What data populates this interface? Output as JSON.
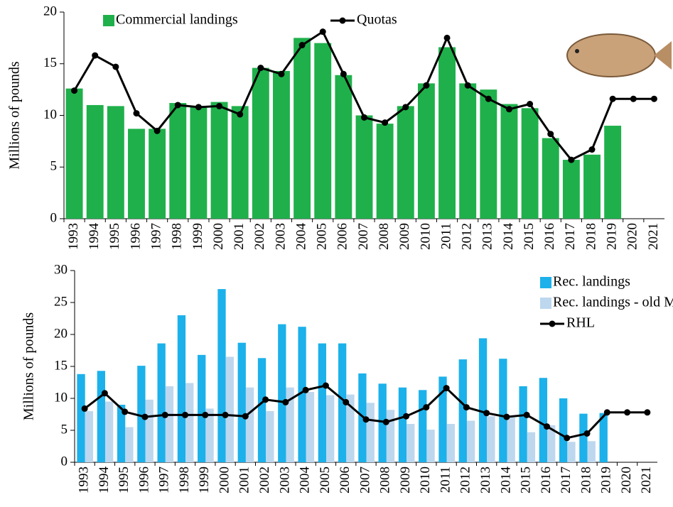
{
  "chart_data": [
    {
      "type": "bar",
      "ylabel": "Millions of pounds",
      "ylim": [
        0,
        20
      ],
      "yticks": [
        0,
        5,
        10,
        15,
        20
      ],
      "legend": "top",
      "categories": [
        "1993",
        "1994",
        "1995",
        "1996",
        "1997",
        "1998",
        "1999",
        "2000",
        "2001",
        "2002",
        "2003",
        "2004",
        "2005",
        "2006",
        "2007",
        "2008",
        "2009",
        "2010",
        "2011",
        "2012",
        "2013",
        "2014",
        "2015",
        "2016",
        "2017",
        "2018",
        "2019",
        "2020",
        "2021"
      ],
      "series": [
        {
          "name": "Commercial landings",
          "type": "bar",
          "color": "#1fb04b",
          "values": [
            12.6,
            11.0,
            10.9,
            8.7,
            8.7,
            11.2,
            10.9,
            11.3,
            10.9,
            14.6,
            14.3,
            17.5,
            17.0,
            13.9,
            10.0,
            9.2,
            10.9,
            13.1,
            16.6,
            13.1,
            12.5,
            11.1,
            10.7,
            7.8,
            5.7,
            6.2,
            9.0,
            null,
            null
          ]
        },
        {
          "name": "Quotas",
          "type": "line",
          "color": "#000000",
          "values": [
            12.4,
            15.8,
            14.7,
            10.2,
            8.5,
            11.0,
            10.8,
            10.9,
            10.1,
            14.6,
            14.0,
            16.8,
            18.1,
            14.0,
            9.8,
            9.3,
            10.8,
            12.9,
            17.5,
            12.9,
            11.6,
            10.6,
            11.1,
            8.2,
            5.7,
            6.7,
            11.6,
            11.6,
            11.6
          ]
        }
      ]
    },
    {
      "type": "bar",
      "ylabel": "Millions of pounds",
      "ylim": [
        0,
        30
      ],
      "yticks": [
        0,
        5,
        10,
        15,
        20,
        25,
        30
      ],
      "legend": "top-right",
      "categories": [
        "1993",
        "1994",
        "1995",
        "1996",
        "1997",
        "1998",
        "1999",
        "2000",
        "2001",
        "2002",
        "2003",
        "2004",
        "2005",
        "2006",
        "2007",
        "2008",
        "2009",
        "2010",
        "2011",
        "2012",
        "2013",
        "2014",
        "2015",
        "2016",
        "2017",
        "2018",
        "2019",
        "2020",
        "2021"
      ],
      "series": [
        {
          "name": "Rec. landings",
          "type": "bar",
          "color": "#1cb1ea",
          "values": [
            13.8,
            14.3,
            9.0,
            15.1,
            18.6,
            23.0,
            16.8,
            27.1,
            18.7,
            16.3,
            21.6,
            21.2,
            18.6,
            18.6,
            13.9,
            12.3,
            11.7,
            11.3,
            13.4,
            16.1,
            19.4,
            16.2,
            11.9,
            13.2,
            10.0,
            7.6,
            7.7,
            null,
            null
          ]
        },
        {
          "name": "Rec. landings - old MRIP",
          "type": "bar",
          "color": "#bdd7ee",
          "values": [
            8.0,
            9.5,
            5.5,
            9.8,
            11.9,
            12.4,
            8.4,
            16.5,
            11.7,
            8.0,
            11.7,
            11.0,
            10.5,
            10.6,
            9.3,
            8.2,
            6.0,
            5.1,
            6.0,
            6.5,
            7.2,
            7.0,
            4.7,
            5.8,
            3.2,
            3.3,
            null,
            null,
            null
          ]
        },
        {
          "name": "RHL",
          "type": "line",
          "color": "#000000",
          "values": [
            8.4,
            10.8,
            7.9,
            7.1,
            7.4,
            7.4,
            7.4,
            7.4,
            7.2,
            9.8,
            9.4,
            11.3,
            12.0,
            9.4,
            6.7,
            6.3,
            7.2,
            8.6,
            11.6,
            8.6,
            7.7,
            7.1,
            7.4,
            5.6,
            3.8,
            4.5,
            7.8,
            7.8,
            7.8
          ]
        }
      ]
    }
  ]
}
